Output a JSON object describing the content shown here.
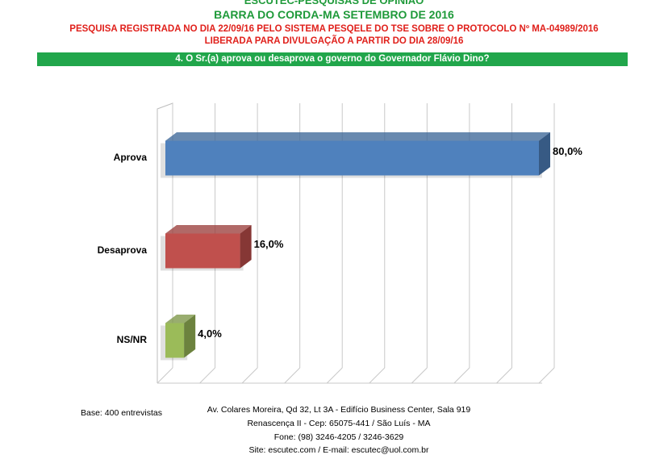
{
  "header": {
    "line1": "ESCUTEC-PESQUISAS DE OPINIÃO",
    "line2": "BARRA DO CORDA-MA SETEMBRO DE 2016",
    "line3": "PESQUISA REGISTRADA NO DIA 22/09/16 PELO SISTEMA PESQELE DO TSE SOBRE O PROTOCOLO Nº MA-04989/2016",
    "line4": "LIBERADA PARA DIVULGAÇÃO A PARTIR DO DIA 28/09/16"
  },
  "question": "4. O Sr.(a) aprova ou desaprova o governo do Governador Flávio Dino?",
  "chart_data": {
    "type": "bar",
    "orientation": "horizontal",
    "categories": [
      "Aprova",
      "Desaprova",
      "NS/NR"
    ],
    "values": [
      80.0,
      16.0,
      4.0
    ],
    "value_labels": [
      "80,0%",
      "16,0%",
      "4,0%"
    ],
    "colors": [
      "#4f81bd",
      "#c0504d",
      "#9bbb59"
    ],
    "xlim": [
      0,
      80
    ],
    "grid": true,
    "legend": "none"
  },
  "footer": {
    "base": "Base: 400 entrevistas",
    "address1": "Av. Colares Moreira, Qd 32, Lt 3A - Edifício Business Center, Sala 919",
    "address2": "Renascença II - Cep: 65075-441 / São Luís - MA",
    "phone": "Fone: (98) 3246-4205 / 3246-3629",
    "site": "Site: escutec.com / E-mail: escutec@uol.com.br"
  }
}
